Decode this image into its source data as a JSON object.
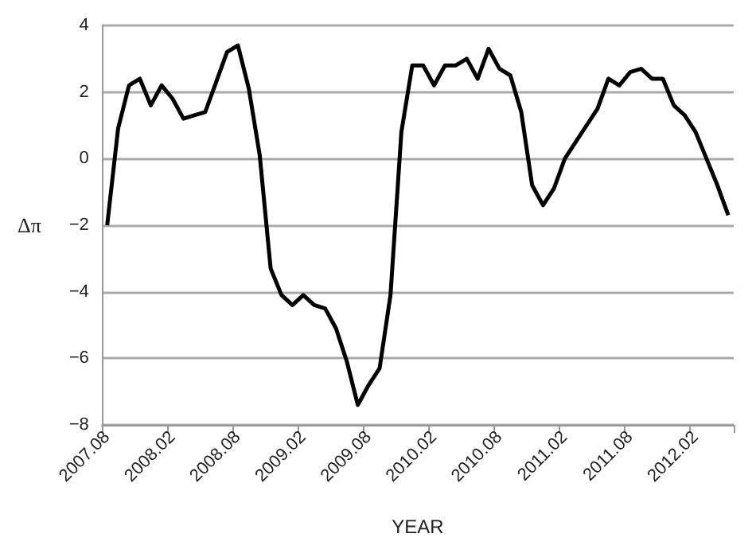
{
  "chart_data": {
    "type": "line",
    "xlabel": "YEAR",
    "ylabel": "Δπ",
    "categories": [
      "2007.08",
      null,
      null,
      null,
      null,
      null,
      "2008.02",
      null,
      null,
      null,
      null,
      null,
      "2008.08",
      null,
      null,
      null,
      null,
      null,
      "2009.02",
      null,
      null,
      null,
      null,
      null,
      "2009.08",
      null,
      null,
      null,
      null,
      null,
      "2010.02",
      null,
      null,
      null,
      null,
      null,
      "2010.08",
      null,
      null,
      null,
      null,
      null,
      "2011.02",
      null,
      null,
      null,
      null,
      null,
      "2011.08",
      null,
      null,
      null,
      null,
      null,
      "2012.02",
      null,
      null,
      null
    ],
    "series": [
      {
        "color": "#000000",
        "values": [
          -2.0,
          0.9,
          2.2,
          2.4,
          1.6,
          2.2,
          1.8,
          1.2,
          1.3,
          1.4,
          2.3,
          3.2,
          3.4,
          2.1,
          0.1,
          -3.3,
          -4.1,
          -4.4,
          -4.1,
          -4.4,
          -4.5,
          -5.1,
          -6.1,
          -7.4,
          -6.8,
          -6.3,
          -4.1,
          0.8,
          2.8,
          2.8,
          2.2,
          2.8,
          2.8,
          3.0,
          2.4,
          3.3,
          2.7,
          2.5,
          1.4,
          -0.8,
          -1.4,
          -0.9,
          0.0,
          0.5,
          1.0,
          1.5,
          2.4,
          2.2,
          2.6,
          2.7,
          2.4,
          2.4,
          1.6,
          1.3,
          0.8,
          0.0,
          -0.8,
          -1.7
        ]
      }
    ],
    "ylim": [
      -8,
      4
    ],
    "yticks": [
      -8,
      -6,
      -4,
      -2,
      0,
      2,
      4
    ],
    "grid": "y",
    "marker": "none",
    "line_style": "solid"
  }
}
